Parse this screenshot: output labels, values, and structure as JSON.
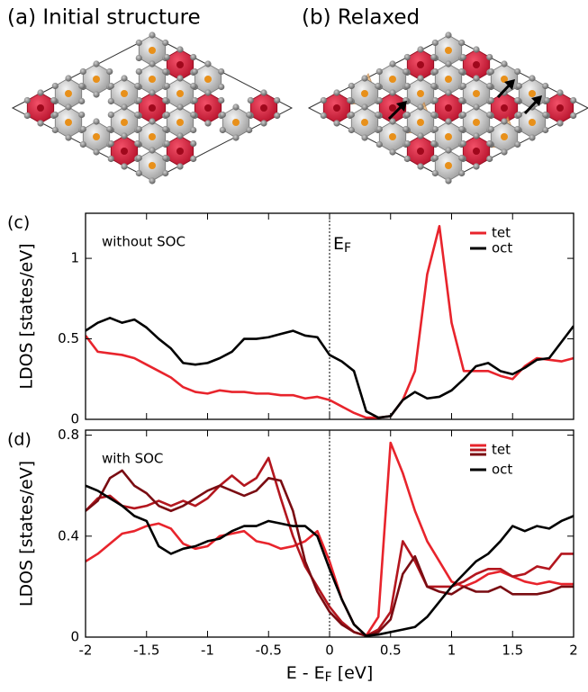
{
  "structures": [
    {
      "label": "(a) Initial structure"
    },
    {
      "label": "(b) Relaxed"
    }
  ],
  "chart_data": [
    {
      "type": "line",
      "panel": "(c)",
      "annotation": "without SOC",
      "ef_label": {
        "main": "E",
        "sub": "F"
      },
      "ylabel": "LDOS [states/eV]",
      "xlim": [
        -2,
        2
      ],
      "ylim": [
        0,
        1.28
      ],
      "xticks": [
        -2,
        -1.5,
        -1,
        -0.5,
        0,
        0.5,
        1,
        1.5,
        2
      ],
      "show_xtick_labels": false,
      "yticks": [
        0,
        0.5,
        1
      ],
      "vline": 0,
      "legend": "upper right",
      "x": [
        -2,
        -1.9,
        -1.8,
        -1.7,
        -1.6,
        -1.5,
        -1.4,
        -1.3,
        -1.2,
        -1.1,
        -1,
        -0.9,
        -0.8,
        -0.7,
        -0.6,
        -0.5,
        -0.4,
        -0.3,
        -0.2,
        -0.1,
        0,
        0.1,
        0.2,
        0.3,
        0.4,
        0.5,
        0.6,
        0.7,
        0.8,
        0.9,
        1,
        1.1,
        1.2,
        1.3,
        1.4,
        1.5,
        1.6,
        1.7,
        1.8,
        1.9,
        2
      ],
      "series": [
        {
          "name": "tet",
          "color": "#e8242c",
          "values": [
            0.52,
            0.42,
            0.41,
            0.4,
            0.38,
            0.34,
            0.3,
            0.26,
            0.2,
            0.17,
            0.16,
            0.18,
            0.17,
            0.17,
            0.16,
            0.16,
            0.15,
            0.15,
            0.13,
            0.14,
            0.12,
            0.08,
            0.04,
            0.01,
            0.01,
            0.02,
            0.12,
            0.3,
            0.9,
            1.2,
            0.6,
            0.3,
            0.3,
            0.3,
            0.27,
            0.25,
            0.33,
            0.38,
            0.37,
            0.36,
            0.38
          ]
        },
        {
          "name": "oct",
          "color": "#000000",
          "values": [
            0.55,
            0.6,
            0.63,
            0.6,
            0.62,
            0.57,
            0.5,
            0.44,
            0.35,
            0.34,
            0.35,
            0.38,
            0.42,
            0.5,
            0.5,
            0.51,
            0.53,
            0.55,
            0.52,
            0.51,
            0.4,
            0.36,
            0.3,
            0.05,
            0.01,
            0.02,
            0.12,
            0.17,
            0.13,
            0.14,
            0.18,
            0.25,
            0.33,
            0.35,
            0.3,
            0.28,
            0.32,
            0.37,
            0.38,
            0.48,
            0.58
          ]
        }
      ]
    },
    {
      "type": "line",
      "panel": "(d)",
      "annotation": "with SOC",
      "ylabel": "LDOS [states/eV]",
      "xlabel": {
        "main": "E - E",
        "sub": "F",
        "unit": " [eV]"
      },
      "xlim": [
        -2,
        2
      ],
      "ylim": [
        0,
        0.82
      ],
      "xticks": [
        -2,
        -1.5,
        -1,
        -0.5,
        0,
        0.5,
        1,
        1.5,
        2
      ],
      "show_xtick_labels": true,
      "yticks": [
        0,
        0.4,
        0.8
      ],
      "vline": 0,
      "legend": "upper right",
      "x": [
        -2,
        -1.9,
        -1.8,
        -1.7,
        -1.6,
        -1.5,
        -1.4,
        -1.3,
        -1.2,
        -1.1,
        -1,
        -0.9,
        -0.8,
        -0.7,
        -0.6,
        -0.5,
        -0.4,
        -0.3,
        -0.2,
        -0.1,
        0,
        0.1,
        0.2,
        0.3,
        0.4,
        0.5,
        0.6,
        0.7,
        0.8,
        0.9,
        1,
        1.1,
        1.2,
        1.3,
        1.4,
        1.5,
        1.6,
        1.7,
        1.8,
        1.9,
        2
      ],
      "series": [
        {
          "name": "tet",
          "color": "#e8242c",
          "values": [
            0.3,
            0.33,
            0.37,
            0.41,
            0.42,
            0.44,
            0.45,
            0.43,
            0.37,
            0.35,
            0.36,
            0.4,
            0.41,
            0.42,
            0.38,
            0.37,
            0.35,
            0.36,
            0.38,
            0.42,
            0.3,
            0.15,
            0.05,
            0.005,
            0.08,
            0.77,
            0.65,
            0.5,
            0.38,
            0.3,
            0.22,
            0.2,
            0.22,
            0.25,
            0.26,
            0.24,
            0.22,
            0.21,
            0.22,
            0.21,
            0.21
          ]
        },
        {
          "color": "#b3161e",
          "values": [
            0.5,
            0.55,
            0.56,
            0.52,
            0.51,
            0.52,
            0.54,
            0.52,
            0.54,
            0.52,
            0.55,
            0.6,
            0.64,
            0.6,
            0.63,
            0.71,
            0.55,
            0.4,
            0.28,
            0.2,
            0.12,
            0.06,
            0.02,
            0.005,
            0.03,
            0.1,
            0.38,
            0.3,
            0.2,
            0.2,
            0.2,
            0.22,
            0.25,
            0.27,
            0.27,
            0.24,
            0.25,
            0.28,
            0.27,
            0.33,
            0.33
          ]
        },
        {
          "color": "#7a0c12",
          "values": [
            0.5,
            0.54,
            0.63,
            0.66,
            0.6,
            0.57,
            0.52,
            0.5,
            0.52,
            0.55,
            0.58,
            0.6,
            0.58,
            0.56,
            0.58,
            0.63,
            0.62,
            0.5,
            0.3,
            0.18,
            0.1,
            0.05,
            0.02,
            0.005,
            0.02,
            0.07,
            0.25,
            0.32,
            0.2,
            0.18,
            0.17,
            0.2,
            0.18,
            0.18,
            0.2,
            0.17,
            0.17,
            0.17,
            0.18,
            0.2,
            0.2
          ]
        },
        {
          "name": "oct",
          "color": "#000000",
          "values": [
            0.6,
            0.58,
            0.55,
            0.52,
            0.48,
            0.46,
            0.36,
            0.33,
            0.35,
            0.36,
            0.38,
            0.39,
            0.42,
            0.44,
            0.44,
            0.46,
            0.45,
            0.44,
            0.44,
            0.4,
            0.27,
            0.15,
            0.05,
            0.005,
            0.01,
            0.02,
            0.03,
            0.04,
            0.08,
            0.14,
            0.2,
            0.25,
            0.3,
            0.33,
            0.38,
            0.44,
            0.42,
            0.44,
            0.43,
            0.46,
            0.48
          ]
        }
      ]
    }
  ]
}
